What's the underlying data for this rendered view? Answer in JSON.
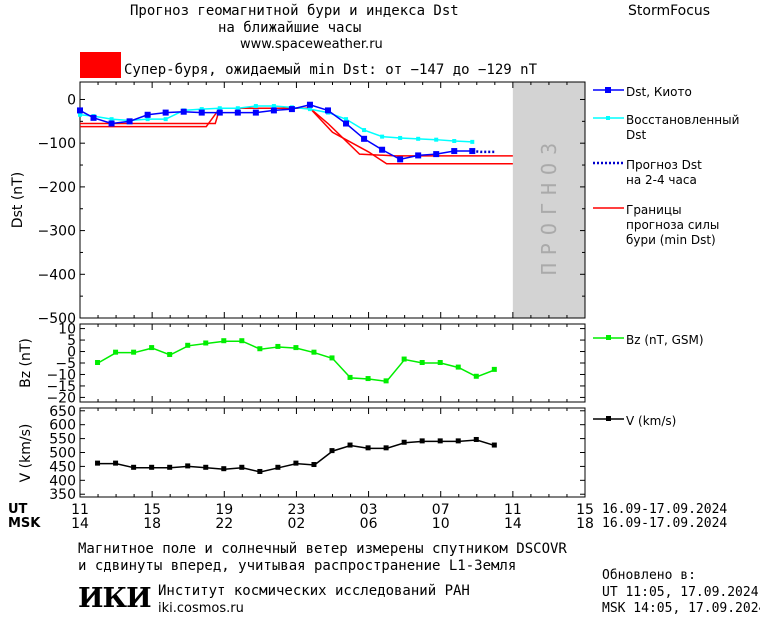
{
  "header": {
    "title_line1": "Прогноз геомагнитной бури и индекса Dst",
    "title_line2": "на ближайшие часы",
    "url": "www.spaceweather.ru",
    "brand": "StormFocus"
  },
  "storm_banner": {
    "text": "Супер-буря, ожидаемый min Dst: от −147 до −129 nT",
    "swatch_color": "#ff0000"
  },
  "forecast_band_label": "ПРОГНОЗ",
  "legend": {
    "dst_kyoto": "Dst, Киото",
    "restored_line1": "Восстановленный",
    "restored_line2": "Dst",
    "forecast_line1": "Прогноз Dst",
    "forecast_line2": "на 2-4 часа",
    "bounds_line1": "Границы",
    "bounds_line2": "прогноза силы",
    "bounds_line3": "бури (min Dst)",
    "bz": "Bz (nT, GSM)",
    "v": "V (km/s)"
  },
  "time_axis": {
    "ut_label": "UT",
    "msk_label": "MSK",
    "ut_ticks": [
      "11",
      "15",
      "19",
      "23",
      "03",
      "07",
      "11",
      "15"
    ],
    "msk_ticks": [
      "14",
      "18",
      "22",
      "02",
      "06",
      "10",
      "14",
      "18"
    ],
    "ut_range": "16.09-17.09.2024",
    "msk_range": "16.09-17.09.2024"
  },
  "footer": {
    "note_line1": "Магнитное поле и солнечный ветер измерены спутником DSCOVR",
    "note_line2": "и сдвинуты вперед, учитывая распространение L1-Земля",
    "institute": "Институт космических исследований РАН",
    "institute_url": "iki.cosmos.ru",
    "logo_text": "ИКИ",
    "updated_label": "Обновлено в:",
    "updated_ut": "UT   11:05, 17.09.2024",
    "updated_msk": "MSK 14:05, 17.09.2024"
  },
  "colors": {
    "dst": "#0000ff",
    "restored": "#00ffff",
    "forecast": "#0000cc",
    "bounds": "#ff0000",
    "bz": "#00ee00",
    "v": "#000000",
    "forecast_band": "#d3d3d3"
  },
  "chart_data": [
    {
      "type": "line",
      "ylabel": "Dst (nT)",
      "ylim": [
        -500,
        40
      ],
      "yticks": [
        0,
        -100,
        -200,
        -300,
        -400,
        -500
      ],
      "xlim": [
        0,
        24
      ],
      "x": [
        0,
        0.75,
        1.75,
        2.75,
        3.75,
        4.75,
        5.75,
        6.75,
        7.75,
        8.75,
        9.75,
        10.75,
        11.75,
        12.75,
        13.75,
        14.75,
        15.75,
        16.75,
        17.75,
        18.75,
        19.75,
        20.75,
        21.75
      ],
      "series": [
        {
          "name": "Dst, Киото",
          "values": [
            -25,
            -42,
            -55,
            -50,
            -35,
            -30,
            -28,
            -30,
            -30,
            -30,
            -30,
            -25,
            -22,
            -12,
            -25,
            -55,
            -90,
            -115,
            -137,
            -128,
            -125,
            -118,
            -118
          ]
        },
        {
          "name": "Восстановленный Dst",
          "values": [
            -35,
            -38,
            -45,
            -48,
            -45,
            -45,
            -25,
            -22,
            -20,
            -20,
            -15,
            -15,
            -18,
            -22,
            -30,
            -45,
            -70,
            -85,
            -88,
            -90,
            -92,
            -95,
            -97
          ]
        }
      ],
      "forecast": {
        "name": "Прогноз Dst на 2-4 часа",
        "x": [
          22.25,
          23
        ],
        "values": [
          -120,
          -120
        ]
      },
      "bounds": {
        "name": "Границы прогноза силы бури (min Dst)",
        "lower": {
          "x": [
            0,
            7,
            7.75,
            12.75,
            13.75,
            15.5,
            17.5,
            24
          ],
          "values": [
            -62,
            -62,
            -20,
            -20,
            -55,
            -125,
            -129,
            -129
          ]
        },
        "upper": {
          "x": [
            0,
            7.5,
            7.75,
            12.75,
            14,
            16,
            17,
            24
          ],
          "values": [
            -55,
            -55,
            -20,
            -20,
            -75,
            -120,
            -147,
            -147
          ]
        }
      },
      "forecast_band": [
        24,
        28
      ]
    },
    {
      "type": "line",
      "ylabel": "Bz (nT)",
      "ylim": [
        -22,
        12
      ],
      "yticks": [
        10,
        5,
        0,
        -5,
        -10,
        -15,
        -20
      ],
      "x": [
        1,
        2,
        3,
        4,
        5,
        6,
        7,
        8,
        9,
        10,
        11,
        12,
        13,
        14,
        15,
        16,
        17,
        18,
        19,
        20,
        21,
        22,
        23
      ],
      "series": [
        {
          "name": "Bz (nT, GSM)",
          "values": [
            -5,
            -0.5,
            -0.5,
            1.5,
            -1.5,
            2.5,
            3.5,
            4.5,
            4.5,
            1.0,
            2.0,
            1.5,
            -0.5,
            -3.0,
            -11.5,
            -12.0,
            -13.0,
            -3.5,
            -5.0,
            -5.0,
            -7.0,
            -11.0,
            -8.0
          ]
        }
      ]
    },
    {
      "type": "line",
      "ylabel": "V (km/s)",
      "ylim": [
        340,
        660
      ],
      "yticks": [
        350,
        400,
        450,
        500,
        550,
        600,
        650
      ],
      "x": [
        1,
        2,
        3,
        4,
        5,
        6,
        7,
        8,
        9,
        10,
        11,
        12,
        13,
        14,
        15,
        16,
        17,
        18,
        19,
        20,
        21,
        22,
        23
      ],
      "series": [
        {
          "name": "V (km/s)",
          "values": [
            460,
            460,
            445,
            445,
            445,
            450,
            445,
            440,
            445,
            430,
            445,
            460,
            455,
            505,
            525,
            515,
            515,
            535,
            540,
            540,
            540,
            545,
            525
          ]
        }
      ]
    }
  ]
}
